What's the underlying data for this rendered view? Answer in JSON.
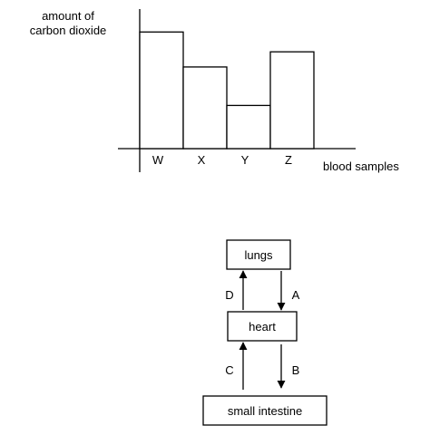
{
  "chart_data": {
    "type": "bar",
    "categories": [
      "W",
      "X",
      "Y",
      "Z"
    ],
    "values": [
      100,
      70,
      37,
      83
    ],
    "ylabel": [
      "amount of",
      "carbon dioxide"
    ],
    "xlabel": "blood samples",
    "ylim": [
      0,
      115
    ],
    "grid": false,
    "y_tick_labels": false
  },
  "diagram": {
    "boxes": {
      "lungs": "lungs",
      "heart": "heart",
      "small_intestine": "small intestine"
    },
    "arrows": {
      "D": "D",
      "A": "A",
      "C": "C",
      "B": "B"
    }
  }
}
